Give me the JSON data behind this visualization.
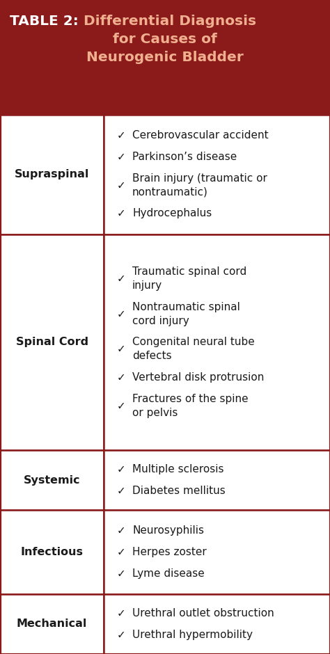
{
  "title_label": "TABLE 2:",
  "title_text": "  Differential Diagnosis\nfor Causes of\nNeurogenic Bladder",
  "header_bg": "#8B1A1A",
  "header_text_color_label": "#FFFFFF",
  "header_text_color_title": "#F0B090",
  "border_color": "#8B1A1A",
  "cell_bg": "#FFFFFF",
  "row_label_color": "#1a1a1a",
  "item_text_color": "#1a1a1a",
  "rows": [
    {
      "label": "Supraspinal",
      "items": [
        "Cerebrovascular accident",
        "Parkinson’s disease",
        "Brain injury (traumatic or\nnontraumatic)",
        "Hydrocephalus"
      ]
    },
    {
      "label": "Spinal Cord",
      "items": [
        "Traumatic spinal cord\ninjury",
        "Nontraumatic spinal\ncord injury",
        "Congenital neural tube\ndefects",
        "Vertebral disk protrusion",
        "Fractures of the spine\nor pelvis"
      ]
    },
    {
      "label": "Systemic",
      "items": [
        "Multiple sclerosis",
        "Diabetes mellitus"
      ]
    },
    {
      "label": "Infectious",
      "items": [
        "Neurosyphilis",
        "Herpes zoster",
        "Lyme disease"
      ]
    },
    {
      "label": "Mechanical",
      "items": [
        "Urethral outlet obstruction",
        "Urethral hypermobility"
      ]
    }
  ],
  "figsize": [
    4.74,
    9.4
  ],
  "dpi": 100
}
